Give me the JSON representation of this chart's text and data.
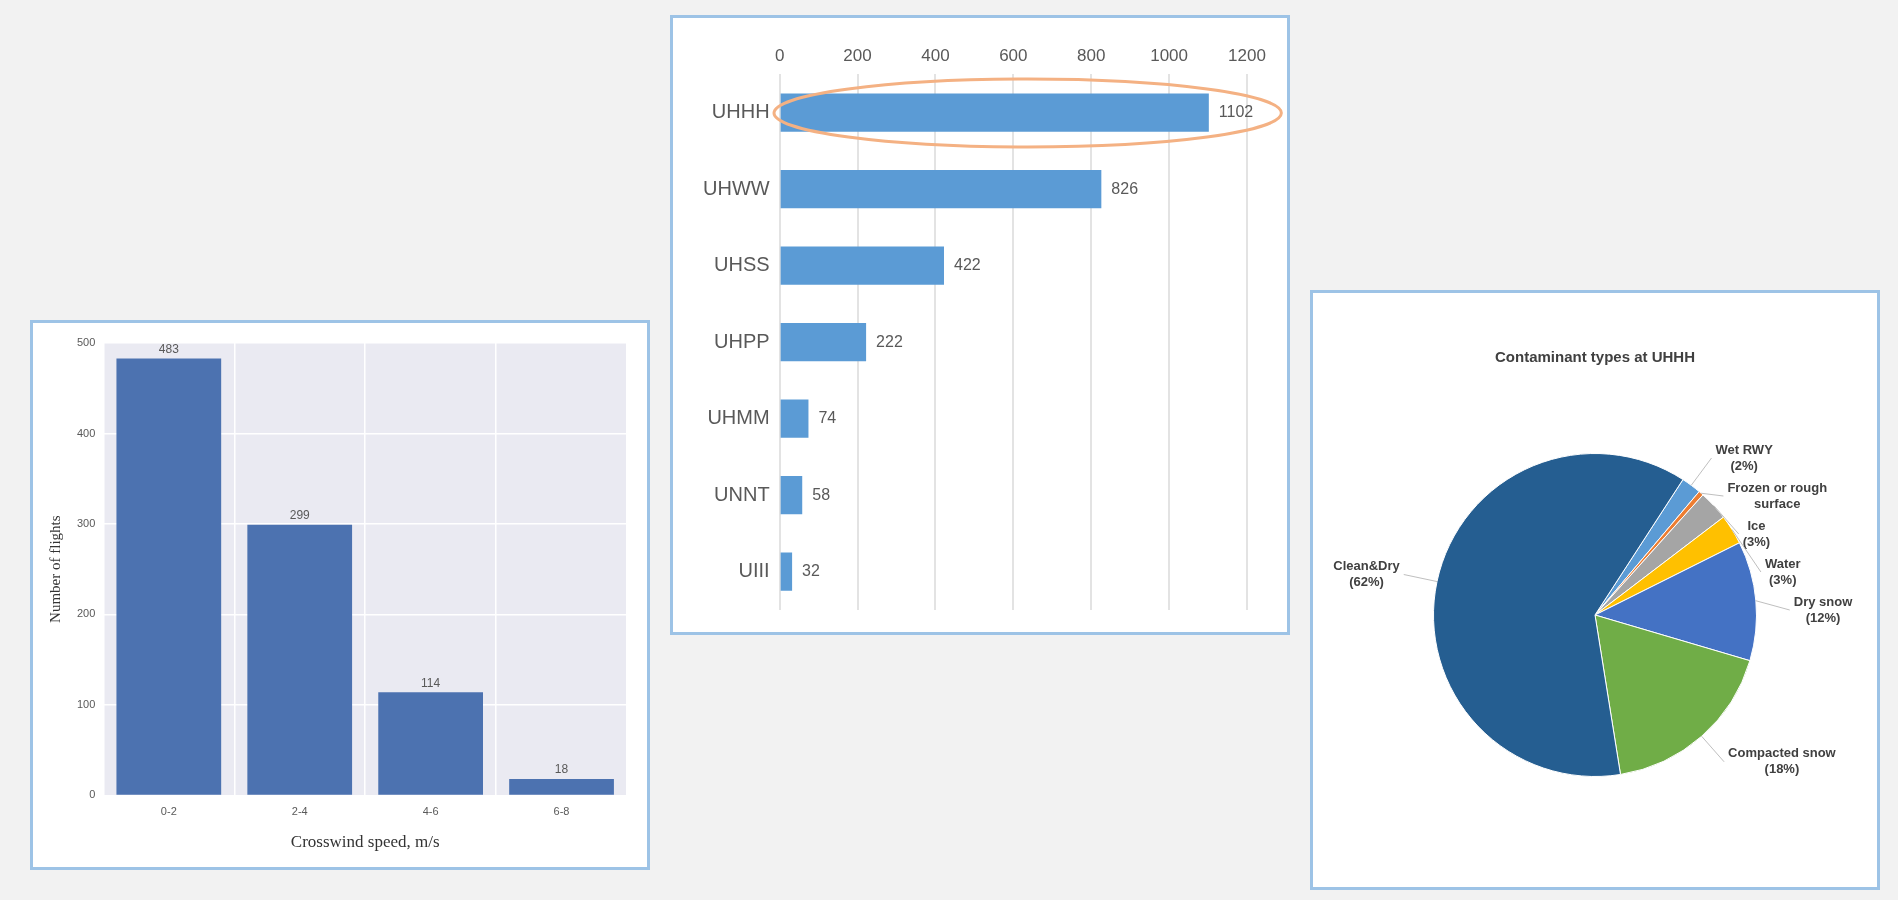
{
  "chart_data": [
    {
      "type": "bar",
      "categories": [
        "0-2",
        "2-4",
        "4-6",
        "6-8"
      ],
      "values": [
        483,
        299,
        114,
        18
      ],
      "color": "#4c72b0",
      "xlabel": "Crosswind speed, m/s",
      "ylabel": "Number of flights",
      "ylim": [
        0,
        500
      ],
      "yticks": [
        0,
        100,
        200,
        300,
        400,
        500
      ],
      "grid": true,
      "data_labels": true
    },
    {
      "type": "bar",
      "orientation": "horizontal",
      "categories": [
        "UHHH",
        "UHWW",
        "UHSS",
        "UHPP",
        "UHMM",
        "UNNT",
        "UIII"
      ],
      "values": [
        1102,
        826,
        422,
        222,
        74,
        58,
        32
      ],
      "color": "#5b9bd5",
      "xlim": [
        0,
        1200
      ],
      "xticks": [
        0,
        200,
        400,
        600,
        800,
        1000,
        1200
      ],
      "grid": "x",
      "data_labels": true
    },
    {
      "type": "pie",
      "title": "Contaminant types at UHHH",
      "categories": [
        "Wet RWY",
        "Frozen or rough surface",
        "Ice",
        "Water",
        "Dry snow",
        "Compacted snow",
        "Clean&Dry"
      ],
      "values": [
        2,
        0.5,
        3,
        3,
        12,
        18,
        62
      ],
      "colors": [
        "#5b9bd5",
        "#ed7d31",
        "#a5a5a5",
        "#ffc000",
        "#4472c4",
        "#70ad47",
        "#255e91"
      ],
      "value_labels": [
        "(2%)",
        null,
        "(3%)",
        "(3%)",
        "(12%)",
        "(18%)",
        "(62%)"
      ]
    }
  ]
}
